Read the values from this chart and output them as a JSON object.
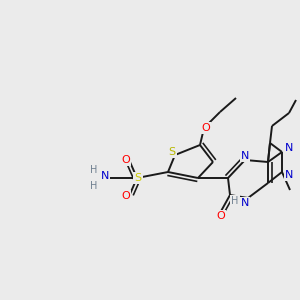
{
  "background_color": "#ebebeb",
  "bond_color": "#1a1a1a",
  "atom_colors": {
    "S_thio": "#b8b800",
    "S_sulfo": "#cccc00",
    "O": "#ff0000",
    "N": "#0000cc",
    "H": "#708090",
    "C": "#1a1a1a"
  },
  "figsize": [
    3.0,
    3.0
  ],
  "dpi": 100
}
